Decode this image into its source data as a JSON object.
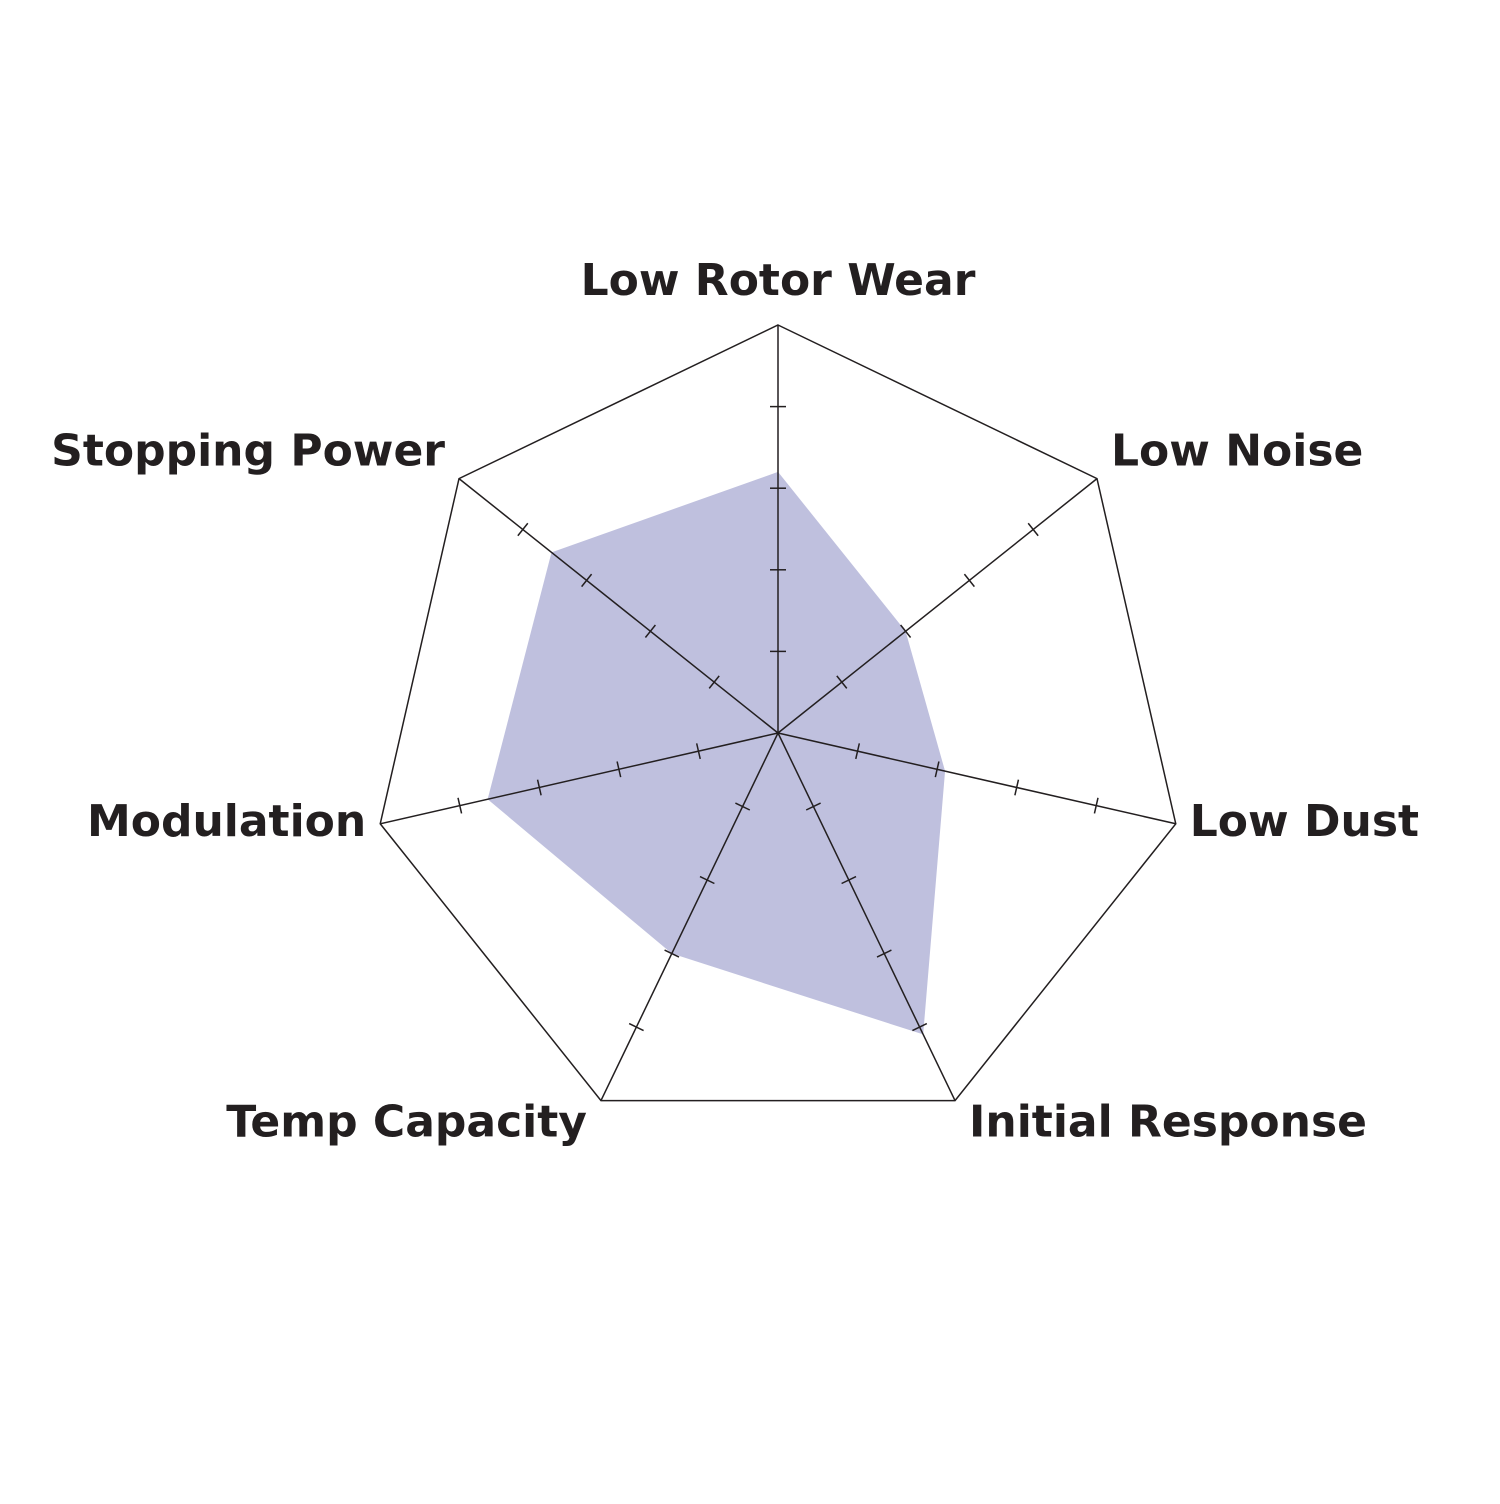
{
  "chart_data": {
    "type": "radar",
    "categories": [
      "Low Rotor Wear",
      "Low Noise",
      "Low Dust",
      "Initial Response",
      "Temp Capacity",
      "Modulation",
      "Stopping Power"
    ],
    "values": [
      3.2,
      2,
      2.1,
      4.1,
      3,
      3.65,
      3.55
    ],
    "color": "#bfc0de",
    "rlim": [
      0,
      5
    ],
    "rticks": [
      1,
      2,
      3,
      4
    ]
  }
}
